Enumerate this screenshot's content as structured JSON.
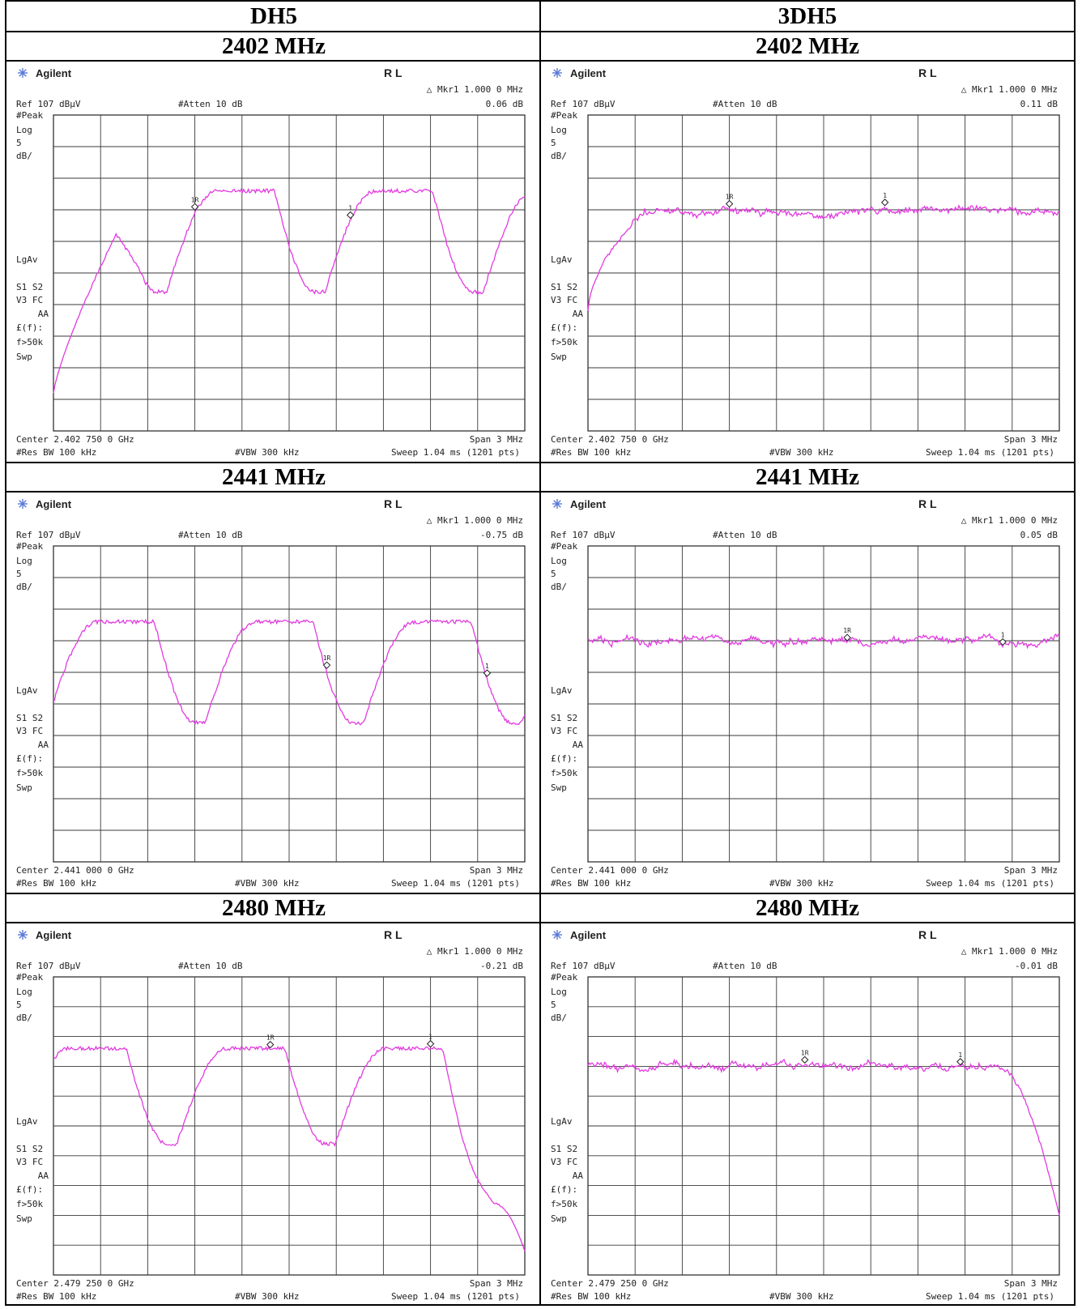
{
  "columns": [
    {
      "title": "DH5"
    },
    {
      "title": "3DH5"
    }
  ],
  "rows": [
    {
      "freq_label": "2402 MHz"
    },
    {
      "freq_label": "2441 MHz"
    },
    {
      "freq_label": "2480 MHz"
    }
  ],
  "analyzer_common": {
    "brand": "Agilent",
    "rl": "R L",
    "ref": "Ref 107 dBµV",
    "atten": "#Atten 10 dB",
    "mode": "#Peak",
    "scale_type": "Log",
    "scale_value": "5",
    "scale_unit": "dB/",
    "avg": "LgAv",
    "s_labels": "S1  S2",
    "v_labels": "V3  FC",
    "aa": "AA",
    "ef": "£(f):",
    "f_limit": "f>50k",
    "swp": "Swp",
    "span": "Span 3 MHz",
    "rbw": "#Res BW 100 kHz",
    "vbw": "#VBW 300 kHz",
    "sweep": "Sweep 1.04 ms (1201 pts)",
    "marker_label": "△ Mkr1  1.000 0 MHz",
    "trace_color": "#e23be0",
    "grid_color": "#3a3a3a"
  },
  "plots": [
    {
      "id": "dh5-2402",
      "col": 0,
      "row": 0,
      "center": "Center 2.402 750 0 GHz",
      "marker_db": "0.06 dB",
      "shape": "hop",
      "offset": 0
    },
    {
      "id": "3dh5-2402",
      "col": 1,
      "row": 0,
      "center": "Center 2.402 750 0 GHz",
      "marker_db": "0.11 dB",
      "shape": "flat-rise",
      "offset": 0
    },
    {
      "id": "dh5-2441",
      "col": 0,
      "row": 1,
      "center": "Center 2.441 000 0 GHz",
      "marker_db": "-0.75 dB",
      "shape": "hop",
      "offset": 1
    },
    {
      "id": "3dh5-2441",
      "col": 1,
      "row": 1,
      "center": "Center 2.441 000 0 GHz",
      "marker_db": "0.05 dB",
      "shape": "flat",
      "offset": 1
    },
    {
      "id": "dh5-2480",
      "col": 0,
      "row": 2,
      "center": "Center 2.479 250 0 GHz",
      "marker_db": "-0.21 dB",
      "shape": "hop",
      "offset": 2
    },
    {
      "id": "3dh5-2480",
      "col": 1,
      "row": 2,
      "center": "Center 2.479 250 0 GHz",
      "marker_db": "-0.01 dB",
      "shape": "flat-fall",
      "offset": 2
    }
  ]
}
